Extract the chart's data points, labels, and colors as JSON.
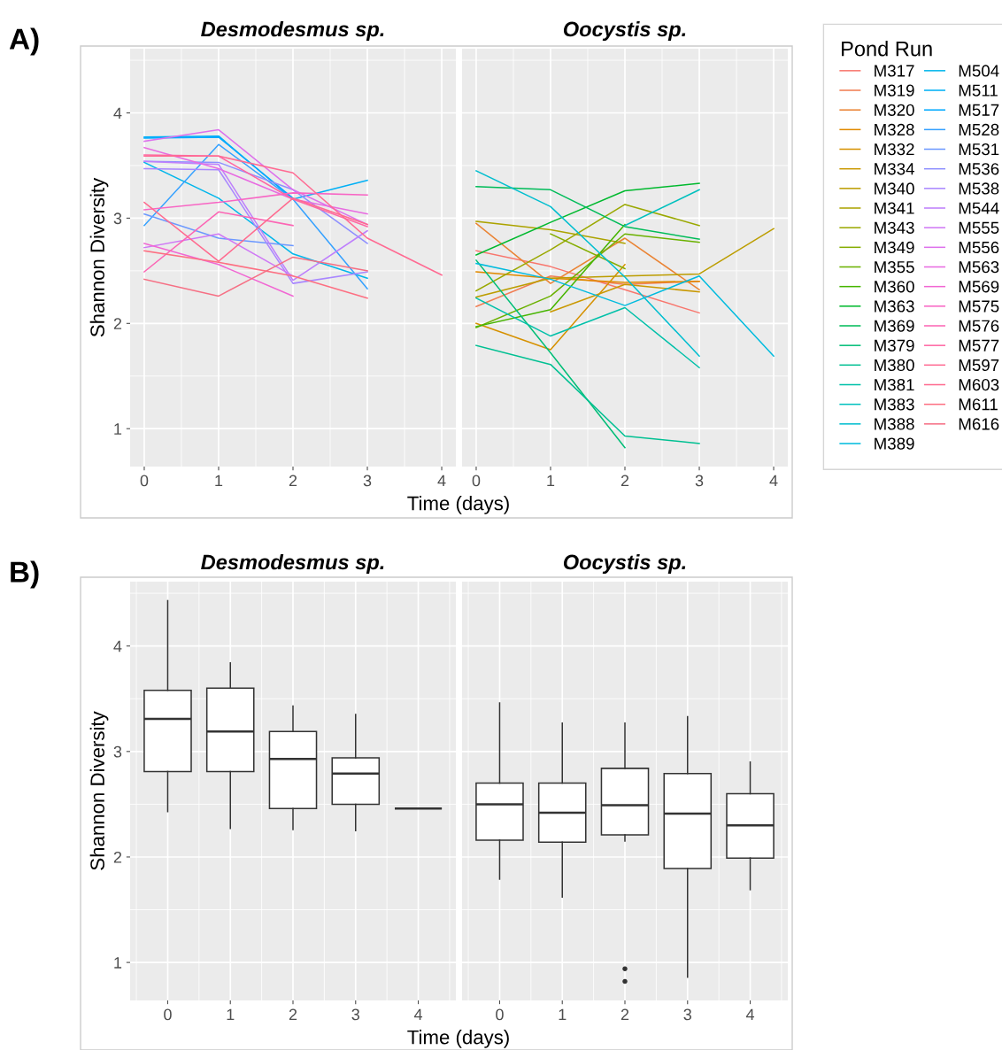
{
  "chart_data": [
    {
      "type": "line",
      "title": "Desmodesmus sp.",
      "xlabel": "Time (days)",
      "ylabel": "Shannon Diversity",
      "annotations": [
        "A)"
      ],
      "xlim": [
        -0.19,
        4.19
      ],
      "xticks": [
        0,
        1,
        2,
        3,
        4
      ],
      "ylim": [
        0.64,
        4.61
      ],
      "yticks": [
        1,
        2,
        3,
        4
      ],
      "grid": true,
      "legend": "right",
      "marker": "none",
      "series": [
        {
          "name": "M504",
          "color": "#00B6EB",
          "x": [
            0,
            1,
            2,
            3
          ],
          "values": [
            3.53,
            3.19,
            2.66,
            2.43
          ]
        },
        {
          "name": "M511",
          "color": "#00B0F6",
          "x": [
            0,
            1,
            2,
            3
          ],
          "values": [
            3.77,
            3.78,
            3.18,
            3.36
          ]
        },
        {
          "name": "M517",
          "color": "#00A9FF",
          "x": [
            0,
            1,
            2
          ],
          "values": [
            3.76,
            3.77,
            3.19
          ]
        },
        {
          "name": "M528",
          "color": "#35A1FF",
          "x": [
            0,
            1,
            2,
            3
          ],
          "values": [
            2.93,
            3.7,
            3.18,
            2.33
          ]
        },
        {
          "name": "M531",
          "color": "#6B98FF",
          "x": [
            0,
            1,
            2
          ],
          "values": [
            3.04,
            2.81,
            2.74
          ]
        },
        {
          "name": "M536",
          "color": "#8E8FFF",
          "x": [
            0,
            1,
            2,
            3
          ],
          "values": [
            3.54,
            3.53,
            3.27,
            2.76
          ]
        },
        {
          "name": "M538",
          "color": "#A987FF",
          "x": [
            0,
            1,
            2,
            3
          ],
          "values": [
            3.47,
            3.46,
            2.38,
            2.49
          ]
        },
        {
          "name": "M544",
          "color": "#BE7FFC",
          "x": [
            0,
            1,
            2,
            3
          ],
          "values": [
            3.54,
            3.51,
            2.41,
            2.88
          ]
        },
        {
          "name": "M555",
          "color": "#CF78F5",
          "x": [
            0,
            1,
            2
          ],
          "values": [
            2.72,
            2.85,
            2.45
          ]
        },
        {
          "name": "M556",
          "color": "#DD71EC",
          "x": [
            0,
            1,
            2,
            3
          ],
          "values": [
            3.73,
            3.84,
            3.27,
            2.94
          ]
        },
        {
          "name": "M563",
          "color": "#E86BE1",
          "x": [
            0,
            1,
            2,
            3
          ],
          "values": [
            3.67,
            3.47,
            3.18,
            3.04
          ]
        },
        {
          "name": "M569",
          "color": "#F166D3",
          "x": [
            0,
            1,
            2
          ],
          "values": [
            2.76,
            2.56,
            2.26
          ]
        },
        {
          "name": "M575",
          "color": "#F865C4",
          "x": [
            0,
            1,
            2,
            3
          ],
          "values": [
            3.08,
            3.15,
            3.24,
            3.22
          ]
        },
        {
          "name": "M576",
          "color": "#FC65B4",
          "x": [
            0,
            1,
            2
          ],
          "values": [
            2.49,
            3.06,
            2.93
          ]
        },
        {
          "name": "M577",
          "color": "#FF67A3",
          "x": [
            0,
            1,
            2,
            3
          ],
          "values": [
            3.6,
            3.59,
            3.18,
            2.92
          ]
        },
        {
          "name": "M597",
          "color": "#FF6A92",
          "x": [
            0,
            1,
            2,
            3,
            4
          ],
          "values": [
            3.59,
            3.59,
            3.43,
            2.81,
            2.46
          ]
        },
        {
          "name": "M603",
          "color": "#FF6B8F",
          "x": [
            0,
            1,
            2,
            3
          ],
          "values": [
            3.15,
            2.59,
            3.19,
            2.94
          ]
        },
        {
          "name": "M611",
          "color": "#FD6F82",
          "x": [
            0,
            1,
            2,
            3
          ],
          "values": [
            2.69,
            2.58,
            2.45,
            2.24
          ]
        },
        {
          "name": "M616",
          "color": "#F66F84",
          "x": [
            0,
            1,
            2,
            3
          ],
          "values": [
            2.42,
            2.26,
            2.63,
            2.5
          ]
        }
      ]
    },
    {
      "type": "line",
      "title": "Oocystis sp.",
      "legend_title": "Pond Run",
      "xlim": [
        -0.19,
        4.19
      ],
      "xticks": [
        0,
        1,
        2,
        3,
        4
      ],
      "ylim": [
        0.64,
        4.61
      ],
      "yticks": [
        1,
        2,
        3,
        4
      ],
      "grid": true,
      "legend": "right",
      "tick_labels": "x",
      "marker": "none",
      "series": [
        {
          "name": "M317",
          "color": "#F8766D",
          "x": [
            0,
            1,
            2,
            3
          ],
          "values": [
            2.69,
            2.54,
            2.32,
            2.1
          ]
        },
        {
          "name": "M319",
          "color": "#F17D52",
          "x": [
            0,
            1,
            2,
            3
          ],
          "values": [
            2.16,
            2.45,
            2.37,
            2.4
          ]
        },
        {
          "name": "M320",
          "color": "#EA8333",
          "x": [
            0,
            1,
            2,
            3
          ],
          "values": [
            2.95,
            2.38,
            2.81,
            2.32
          ]
        },
        {
          "name": "M328",
          "color": "#E18A00",
          "x": [
            0,
            1,
            2,
            3
          ],
          "values": [
            2.49,
            2.43,
            2.39,
            2.4
          ]
        },
        {
          "name": "M332",
          "color": "#D69100",
          "x": [
            0,
            1,
            2
          ],
          "values": [
            2.0,
            1.75,
            2.56
          ]
        },
        {
          "name": "M334",
          "color": "#C99800",
          "x": [
            1,
            2,
            3
          ],
          "values": [
            2.11,
            2.37,
            2.3
          ]
        },
        {
          "name": "M340",
          "color": "#BC9D00",
          "x": [
            0,
            1,
            2,
            3,
            4
          ],
          "values": [
            2.25,
            2.43,
            2.45,
            2.47,
            2.9
          ]
        },
        {
          "name": "M341",
          "color": "#ACA300",
          "x": [
            0,
            1,
            2
          ],
          "values": [
            2.97,
            2.89,
            2.76
          ]
        },
        {
          "name": "M343",
          "color": "#9AA800",
          "x": [
            0,
            1,
            2,
            3
          ],
          "values": [
            2.31,
            2.7,
            3.13,
            2.93
          ]
        },
        {
          "name": "M349",
          "color": "#85AD00",
          "x": [
            1,
            2
          ],
          "values": [
            2.85,
            2.52
          ]
        },
        {
          "name": "M355",
          "color": "#6BB100",
          "x": [
            0,
            1,
            2,
            3
          ],
          "values": [
            1.96,
            2.26,
            2.85,
            2.77
          ]
        },
        {
          "name": "M360",
          "color": "#46B500",
          "x": [
            0,
            1,
            2
          ],
          "values": [
            1.97,
            2.13,
            2.94
          ]
        },
        {
          "name": "M363",
          "color": "#00B92E",
          "x": [
            0,
            1,
            2,
            3
          ],
          "values": [
            2.65,
            2.96,
            3.26,
            3.33
          ]
        },
        {
          "name": "M369",
          "color": "#00BC59",
          "x": [
            0,
            1,
            2,
            3
          ],
          "values": [
            3.3,
            3.27,
            2.92,
            2.8
          ]
        },
        {
          "name": "M379",
          "color": "#00BE77",
          "x": [
            0,
            1,
            2
          ],
          "values": [
            2.6,
            1.72,
            0.82
          ]
        },
        {
          "name": "M380",
          "color": "#00C092",
          "x": [
            0,
            1,
            2,
            3
          ],
          "values": [
            1.79,
            1.61,
            0.93,
            0.86
          ]
        },
        {
          "name": "M381",
          "color": "#00C0A9",
          "x": [
            0,
            1,
            2,
            3
          ],
          "values": [
            2.24,
            1.88,
            2.15,
            1.58
          ]
        },
        {
          "name": "M383",
          "color": "#00C0BE",
          "x": [
            2,
            3
          ],
          "values": [
            2.93,
            3.27
          ]
        },
        {
          "name": "M388",
          "color": "#00BECF",
          "x": [
            0,
            1,
            2,
            3
          ],
          "values": [
            3.45,
            3.11,
            2.44,
            1.69
          ]
        },
        {
          "name": "M389",
          "color": "#00BBDE",
          "x": [
            0,
            1,
            2,
            3,
            4
          ],
          "values": [
            2.57,
            2.42,
            2.17,
            2.45,
            1.69
          ]
        }
      ]
    },
    {
      "type": "box",
      "title": "Desmodesmus sp.",
      "xlabel": "Time (days)",
      "ylabel": "Shannon Diversity",
      "annotations": [
        "B)"
      ],
      "categories": [
        "0",
        "1",
        "2",
        "3",
        "4"
      ],
      "ylim": [
        0.64,
        4.61
      ],
      "yticks": [
        1,
        2,
        3,
        4
      ],
      "grid": true,
      "boxes": [
        {
          "low": 2.43,
          "q1": 2.81,
          "median": 3.31,
          "q3": 3.58,
          "high": 4.43
        },
        {
          "low": 2.27,
          "q1": 2.81,
          "median": 3.19,
          "q3": 3.6,
          "high": 3.84
        },
        {
          "low": 2.26,
          "q1": 2.46,
          "median": 2.93,
          "q3": 3.19,
          "high": 3.43
        },
        {
          "low": 2.25,
          "q1": 2.5,
          "median": 2.79,
          "q3": 2.94,
          "high": 3.35
        },
        {
          "low": 2.46,
          "q1": 2.46,
          "median": 2.46,
          "q3": 2.46,
          "high": 2.46
        }
      ]
    },
    {
      "type": "box",
      "title": "Oocystis sp.",
      "categories": [
        "0",
        "1",
        "2",
        "3",
        "4"
      ],
      "ylim": [
        0.64,
        4.61
      ],
      "yticks": [
        1,
        2,
        3,
        4
      ],
      "grid": true,
      "tick_labels": "x",
      "boxes": [
        {
          "low": 1.79,
          "q1": 2.16,
          "median": 2.5,
          "q3": 2.7,
          "high": 3.46
        },
        {
          "low": 1.62,
          "q1": 2.14,
          "median": 2.42,
          "q3": 2.7,
          "high": 3.27
        },
        {
          "low": 2.15,
          "q1": 2.21,
          "median": 2.49,
          "q3": 2.84,
          "high": 3.27,
          "outliers": [
            0.94,
            0.82
          ]
        },
        {
          "low": 0.86,
          "q1": 1.89,
          "median": 2.41,
          "q3": 2.79,
          "high": 3.33
        },
        {
          "low": 1.69,
          "q1": 1.99,
          "median": 2.3,
          "q3": 2.6,
          "high": 2.9
        }
      ]
    }
  ]
}
